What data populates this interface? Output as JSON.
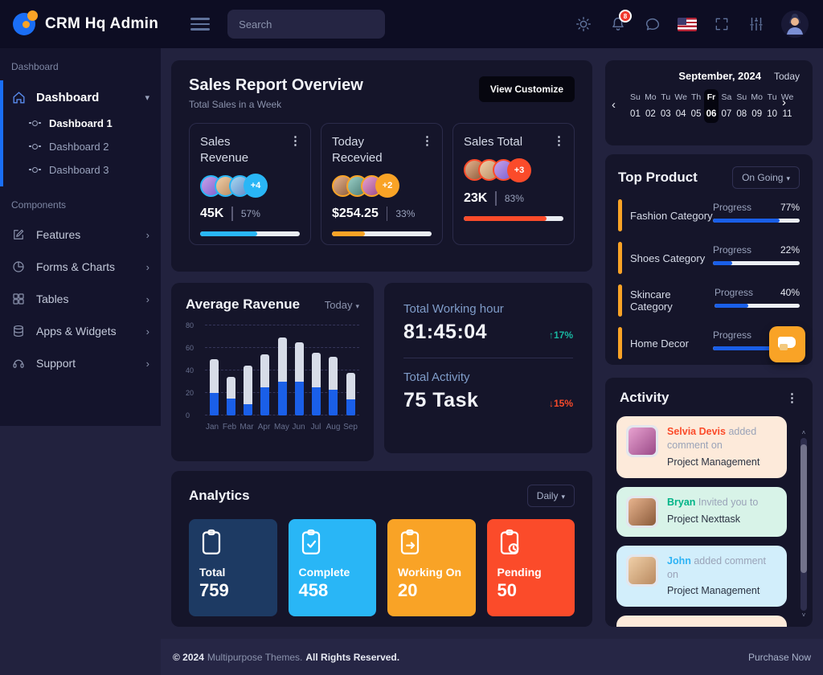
{
  "header": {
    "brand": "CRM Hq Admin",
    "search_placeholder": "Search",
    "notification_count": "8",
    "icons": [
      "menu-hamburger",
      "theme-sun",
      "notifications-bell",
      "messages-chat",
      "language-us-flag",
      "fullscreen",
      "settings-sliders",
      "user-avatar"
    ]
  },
  "sidebar": {
    "section1": "Dashboard",
    "group_label": "Dashboard",
    "sub_items": [
      "Dashboard 1",
      "Dashboard 2",
      "Dashboard 3"
    ],
    "section2": "Components",
    "items": [
      {
        "label": "Features",
        "icon": "edit-icon"
      },
      {
        "label": "Forms & Charts",
        "icon": "pie-chart-icon"
      },
      {
        "label": "Tables",
        "icon": "grid-icon"
      },
      {
        "label": "Apps & Widgets",
        "icon": "database-icon"
      },
      {
        "label": "Support",
        "icon": "headset-icon"
      }
    ]
  },
  "sales_overview": {
    "title": "Sales Report Overview",
    "subtitle": "Total Sales in a Week",
    "button": "View Customize",
    "cards": [
      {
        "title": "Sales Revenue",
        "more": "+4",
        "value": "45K",
        "percent": "57%",
        "progress": 57,
        "color": "#29b6f6"
      },
      {
        "title": "Today Recevied",
        "more": "+2",
        "value": "$254.25",
        "percent": "33%",
        "progress": 33,
        "color": "#f9a326"
      },
      {
        "title": "Sales Total",
        "more": "+3",
        "value": "23K",
        "percent": "83%",
        "progress": 83,
        "color": "#fb4b2a"
      }
    ]
  },
  "chart_data": {
    "type": "bar",
    "stacked": true,
    "title": "Average Ravenue",
    "filter": "Today",
    "categories": [
      "Jan",
      "Feb",
      "Mar",
      "Apr",
      "May",
      "Jun",
      "Jul",
      "Aug",
      "Sep"
    ],
    "series": [
      {
        "name": "primary",
        "color": "#1a5fe8",
        "values": [
          20,
          15,
          10,
          25,
          30,
          30,
          25,
          23,
          14
        ]
      },
      {
        "name": "secondary",
        "color": "#d7dce8",
        "values": [
          30,
          19,
          34,
          29,
          39,
          35,
          31,
          29,
          24
        ]
      }
    ],
    "totals": [
      50,
      34,
      44,
      54,
      69,
      65,
      56,
      52,
      38
    ],
    "ylim": [
      0,
      80
    ],
    "yticks": [
      0,
      20,
      40,
      60,
      80
    ],
    "grid": true,
    "legend": false
  },
  "working": {
    "hour_label": "Total Working hour",
    "hour_value": "81:45:04",
    "hour_delta": "17%",
    "activity_label": "Total Activity",
    "activity_value": "75 Task",
    "activity_delta": "15%",
    "up_color": "#19b8a2",
    "down_color": "#fb4b2a"
  },
  "analytics": {
    "title": "Analytics",
    "filter": "Daily",
    "tiles": [
      {
        "label": "Total",
        "value": "759",
        "color": "#1d3a63",
        "icon": "clipboard-icon"
      },
      {
        "label": "Complete",
        "value": "458",
        "color": "#29b6f6",
        "icon": "clipboard-check-icon"
      },
      {
        "label": "Working On",
        "value": "20",
        "color": "#f9a326",
        "icon": "clipboard-arrow-icon"
      },
      {
        "label": "Pending",
        "value": "50",
        "color": "#fb4b2a",
        "icon": "clipboard-clock-icon"
      }
    ]
  },
  "calendar": {
    "month": "September, 2024",
    "today_label": "Today",
    "days": [
      {
        "dow": "Su",
        "date": "01"
      },
      {
        "dow": "Mo",
        "date": "02"
      },
      {
        "dow": "Tu",
        "date": "03"
      },
      {
        "dow": "We",
        "date": "04"
      },
      {
        "dow": "Th",
        "date": "05"
      },
      {
        "dow": "Fr",
        "date": "06"
      },
      {
        "dow": "Sa",
        "date": "07"
      },
      {
        "dow": "Su",
        "date": "08"
      },
      {
        "dow": "Mo",
        "date": "09"
      },
      {
        "dow": "Tu",
        "date": "10"
      },
      {
        "dow": "We",
        "date": "11"
      }
    ],
    "selected_index": 5
  },
  "top_product": {
    "title": "Top Product",
    "filter": "On Going",
    "progress_label": "Progress",
    "items": [
      {
        "name": "Fashion Category",
        "percent": "77%",
        "progress": 77
      },
      {
        "name": "Shoes Category",
        "percent": "22%",
        "progress": 22
      },
      {
        "name": "Skincare Category",
        "percent": "40%",
        "progress": 40
      },
      {
        "name": "Home Decor",
        "percent": "77%",
        "progress": 77
      }
    ],
    "accent_color": "#f9a326",
    "bar_color": "#1a5fe8"
  },
  "activity": {
    "title": "Activity",
    "items": [
      {
        "name": "Selvia Devis",
        "action": "added comment on",
        "project": "Project Management",
        "name_color": "#fb4b2a",
        "bg": "#fdeada"
      },
      {
        "name": "Bryan",
        "action": "Invited you to",
        "project": "Project Nexttask",
        "name_color": "#00b488",
        "bg": "#d8f3e8"
      },
      {
        "name": "John",
        "action": "added comment on",
        "project": "Project Management",
        "name_color": "#2db3f5",
        "bg": "#d2eefb"
      }
    ]
  },
  "footer": {
    "copyright": "© 2024",
    "brand": "Multipurpose Themes.",
    "rights": "All Rights Reserved.",
    "purchase": "Purchase Now"
  }
}
